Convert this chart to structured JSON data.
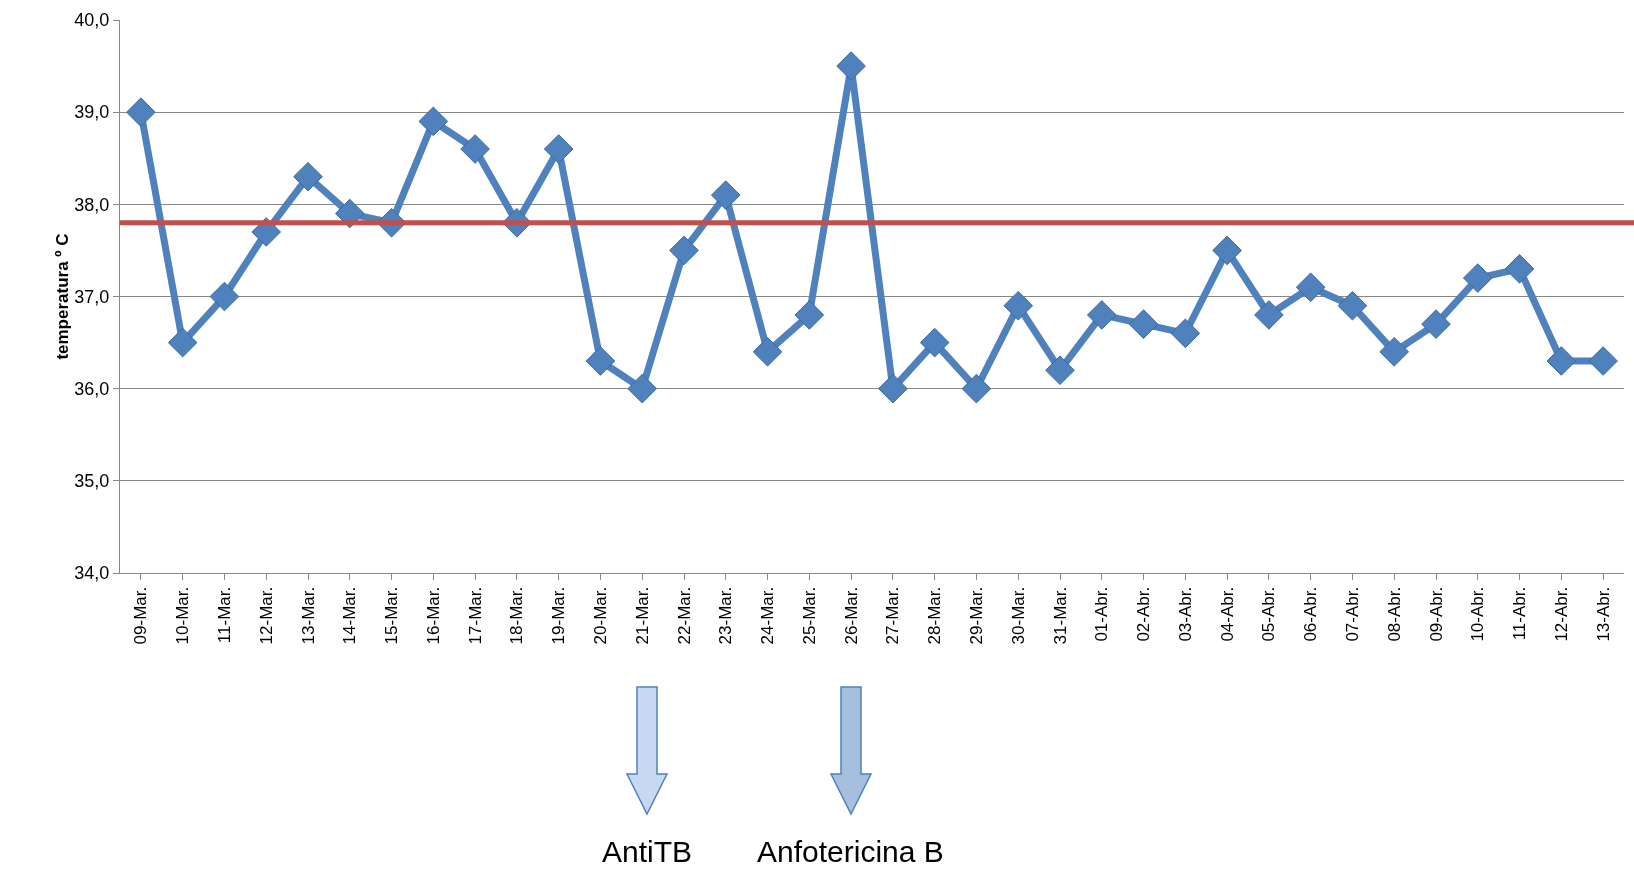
{
  "chart_data": {
    "type": "line",
    "ylabel": "temperatura º C",
    "categories": [
      "09-Mar.",
      "10-Mar.",
      "11-Mar.",
      "12-Mar.",
      "13-Mar.",
      "14-Mar.",
      "15-Mar.",
      "16-Mar.",
      "17-Mar.",
      "18-Mar.",
      "19-Mar.",
      "20-Mar.",
      "21-Mar.",
      "22-Mar.",
      "23-Mar.",
      "24-Mar.",
      "25-Mar.",
      "26-Mar.",
      "27-Mar.",
      "28-Mar.",
      "29-Mar.",
      "30-Mar.",
      "31-Mar.",
      "01-Abr.",
      "02-Abr.",
      "03-Abr.",
      "04-Abr.",
      "05-Abr.",
      "06-Abr.",
      "07-Abr.",
      "08-Abr.",
      "09-Abr.",
      "10-Abr.",
      "11-Abr.",
      "12-Abr.",
      "13-Abr."
    ],
    "series": [
      {
        "color": "#4f81bd",
        "values": [
          39.0,
          36.5,
          37.0,
          37.7,
          38.3,
          37.9,
          37.8,
          38.9,
          38.6,
          37.8,
          38.6,
          36.3,
          36.0,
          37.5,
          38.1,
          36.4,
          36.8,
          39.5,
          36.0,
          36.5,
          36.0,
          36.9,
          36.2,
          36.8,
          36.7,
          36.6,
          37.5,
          36.8,
          37.1,
          36.9,
          36.4,
          36.7,
          37.2,
          37.3,
          36.3,
          36.3
        ]
      }
    ],
    "ylim": [
      34,
      40
    ],
    "yticks": [
      {
        "value": 34,
        "label": "34,0"
      },
      {
        "value": 35,
        "label": "35,0"
      },
      {
        "value": 36,
        "label": "36,0"
      },
      {
        "value": 37,
        "label": "37,0"
      },
      {
        "value": 38,
        "label": "38,0"
      },
      {
        "value": 39,
        "label": "39,0"
      },
      {
        "value": 40,
        "label": "40,0"
      }
    ],
    "ref_lines": [
      {
        "axis": "y",
        "value": 37.8,
        "color": "#c0504d"
      }
    ],
    "annotations": [
      "AntiTB",
      "Anfotericina B"
    ],
    "grid": "y",
    "marker": "diamond",
    "line_style": "solid"
  }
}
